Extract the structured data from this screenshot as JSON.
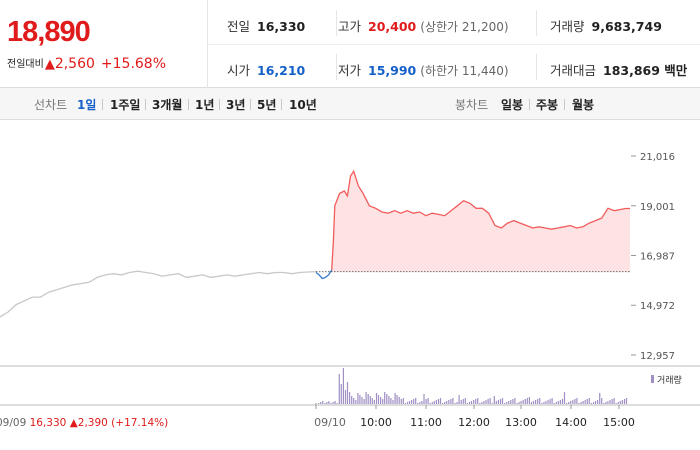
{
  "header": {
    "price": "18,890",
    "change_label": "전일대비",
    "change_arrow": "▲",
    "change_value": "2,560",
    "change_pct": "+15.68%",
    "stats": {
      "prev_close": {
        "label": "전일",
        "value": "16,330"
      },
      "high": {
        "label": "고가",
        "value": "20,400",
        "sub": "(상한가 21,200)"
      },
      "volume": {
        "label": "거래량",
        "value": "9,683,749"
      },
      "open": {
        "label": "시가",
        "value": "16,210"
      },
      "low": {
        "label": "저가",
        "value": "15,990",
        "sub": "(하한가 11,440)"
      },
      "amount": {
        "label": "거래대금",
        "value": "183,869 백만"
      }
    }
  },
  "toolbar": {
    "line_chart_label": "선차트",
    "line_periods": [
      "1일",
      "1주일",
      "3개월",
      "1년",
      "3년",
      "5년",
      "10년"
    ],
    "active_period": "1일",
    "candle_label": "봉차트",
    "candle_periods": [
      "일봉",
      "주봉",
      "월봉"
    ]
  },
  "colors": {
    "up": "#e01b1b",
    "down": "#1560c9",
    "up_line": "#f25c5c",
    "up_fill": "#fde3e3",
    "prev_day_line": "#c8c8c8",
    "down_line": "#3a7fd0",
    "volume_bar": "#9f8fc4"
  },
  "chart_data": {
    "type": "line",
    "y_ticks": [
      "21,016",
      "19,001",
      "16,987",
      "14,972",
      "12,957"
    ],
    "y_tick_values": [
      21016,
      19001,
      16987,
      14972,
      12957
    ],
    "ylim": [
      12957,
      21016
    ],
    "baseline": 16330,
    "x_tick_labels": [
      "09/10",
      "10:00",
      "11:00",
      "12:00",
      "13:00",
      "14:00",
      "15:00"
    ],
    "prev_day_label": {
      "date": "09/09",
      "close": "16,330",
      "arrow": "▲",
      "change": "2,390",
      "pct": "(+17.14%)"
    },
    "volume_legend": "거래량",
    "grid": true,
    "series": [
      {
        "values_prev_day": [
          14500,
          14700,
          15000,
          15150,
          15300,
          15300,
          15500,
          15600,
          15700,
          15800,
          15850,
          15900,
          16100,
          16200,
          16250,
          16200,
          16300,
          16350,
          16300,
          16250,
          16150,
          16200,
          16250,
          16100,
          16150,
          16200,
          16100,
          16150,
          16200,
          16150,
          16200,
          16250,
          16300,
          16250,
          16300,
          16300,
          16250,
          16300,
          16320,
          16330
        ],
        "values_today_t": [
          0,
          0.01,
          0.02,
          0.03,
          0.04,
          0.05,
          0.055,
          0.06,
          0.075,
          0.09,
          0.1,
          0.11,
          0.12,
          0.135,
          0.15,
          0.17,
          0.19,
          0.21,
          0.23,
          0.25,
          0.27,
          0.29,
          0.31,
          0.33,
          0.35,
          0.37,
          0.39,
          0.41,
          0.43,
          0.45,
          0.47,
          0.49,
          0.51,
          0.53,
          0.55,
          0.57,
          0.59,
          0.61,
          0.63,
          0.65,
          0.67,
          0.69,
          0.71,
          0.73,
          0.75,
          0.77,
          0.79,
          0.81,
          0.83,
          0.85,
          0.87,
          0.89,
          0.91,
          0.93,
          0.95,
          0.97,
          0.985,
          1
        ],
        "values_today": [
          16300,
          16200,
          16050,
          16100,
          16200,
          16400,
          17500,
          19000,
          19500,
          19600,
          19400,
          20200,
          20400,
          19800,
          19500,
          19000,
          18900,
          18750,
          18700,
          18800,
          18700,
          18800,
          18700,
          18750,
          18600,
          18700,
          18650,
          18600,
          18800,
          19000,
          19200,
          19100,
          18900,
          18900,
          18700,
          18200,
          18100,
          18300,
          18400,
          18300,
          18200,
          18100,
          18150,
          18100,
          18050,
          18100,
          18150,
          18200,
          18100,
          18150,
          18300,
          18400,
          18500,
          18900,
          18800,
          18850,
          18890,
          18890
        ]
      }
    ]
  }
}
